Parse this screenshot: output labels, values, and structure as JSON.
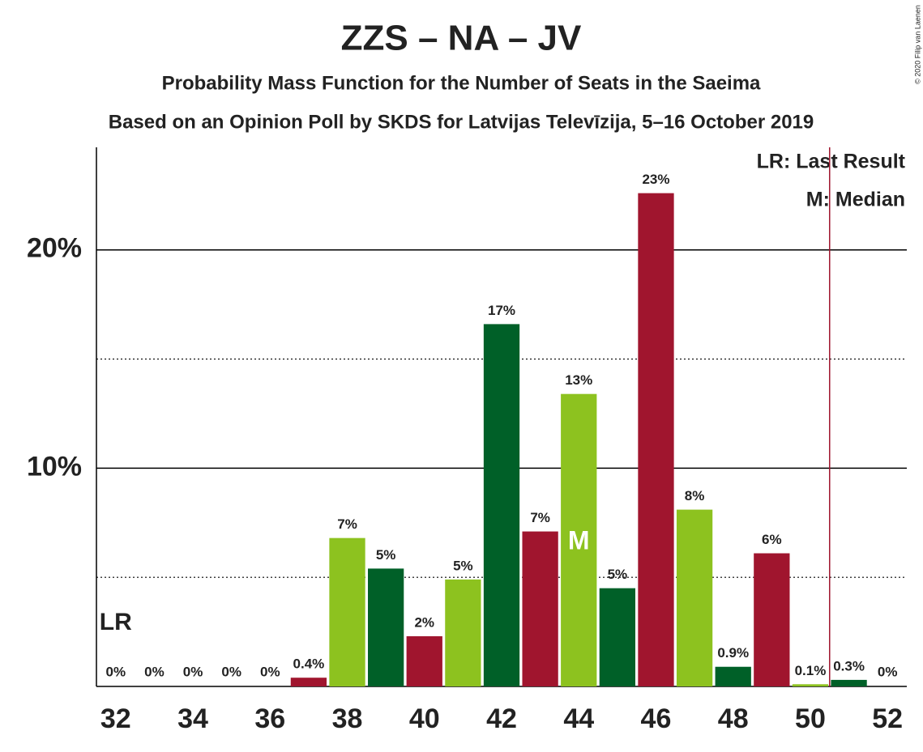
{
  "chart_data": {
    "type": "bar",
    "title": "ZZS – NA – JV",
    "subtitles": [
      "Probability Mass Function for the Number of Seats in the Saeima",
      "Based on an Opinion Poll by SKDS for Latvijas Televīzija, 5–16 October 2019"
    ],
    "categories": [
      "32",
      null,
      "34",
      null,
      "36",
      null,
      "38",
      null,
      "40",
      null,
      "42",
      null,
      "44",
      null,
      "46",
      null,
      "48",
      null,
      "50",
      null,
      "52"
    ],
    "values": [
      0,
      0,
      0,
      0,
      0,
      0.4,
      6.8,
      5.4,
      2.3,
      4.9,
      16.6,
      7.1,
      13.4,
      4.5,
      22.6,
      8.1,
      0.9,
      6.1,
      0.1,
      0.3,
      0
    ],
    "value_labels": [
      "0%",
      "0%",
      "0%",
      "0%",
      "0%",
      "0.4%",
      "7%",
      "5%",
      "2%",
      "5%",
      "17%",
      "7%",
      "13%",
      "5%",
      "23%",
      "8%",
      "0.9%",
      "6%",
      "0.1%",
      "0.3%",
      "0%"
    ],
    "colors": [
      "#8dc21f",
      "#006028",
      "#a0152e",
      "#8dc21f",
      "#006028",
      "#a0152e",
      "#8dc21f",
      "#006028",
      "#a0152e",
      "#8dc21f",
      "#006028",
      "#a0152e",
      "#8dc21f",
      "#006028",
      "#a0152e",
      "#8dc21f",
      "#006028",
      "#a0152e",
      "#8dc21f",
      "#006028",
      "#a0152e"
    ],
    "ylim": [
      0,
      24.7
    ],
    "yticks": [
      {
        "value": 10,
        "label": "10%"
      },
      {
        "value": 20,
        "label": "20%"
      }
    ],
    "minor_yticks": [
      5,
      15
    ],
    "last_result_label": "LR",
    "last_result_index": 0,
    "median_label": "M",
    "median_index": 12,
    "majority_x": 18.5,
    "majority_color": "#a0152e",
    "legend": [
      "LR: Last Result",
      "M: Median"
    ],
    "copyright": "© 2020 Filip van Laenen"
  }
}
